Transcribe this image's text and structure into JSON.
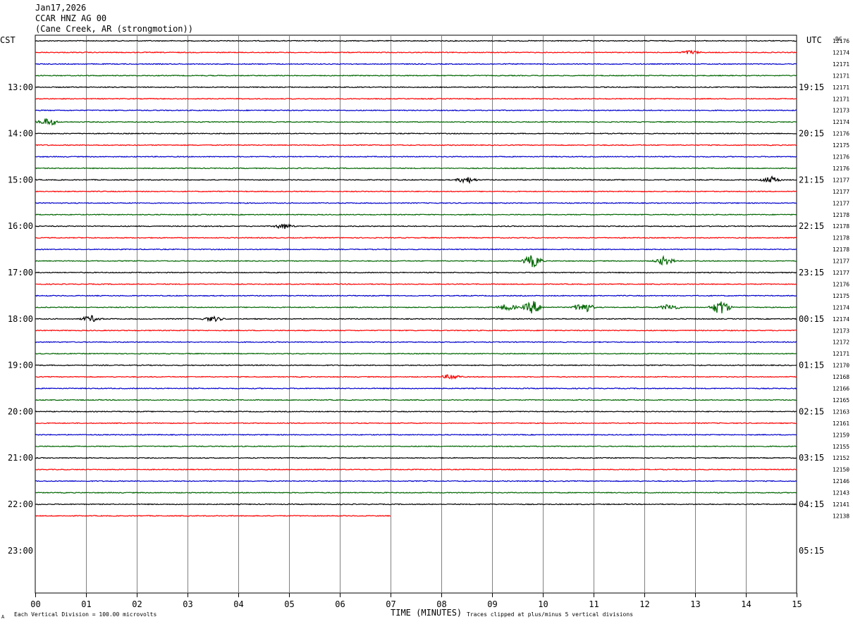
{
  "header": {
    "date": "Jan17,2026",
    "station": "CCAR HNZ AG 00",
    "location": "(Cane Creek, AR (strongmotion))"
  },
  "left_tz": "CST",
  "right_tz": "UTC",
  "dc_label": "DC",
  "footer": {
    "scale": "Each Vertical Division =  100.00 microvolts",
    "xlabel": "TIME (MINUTES)",
    "clip": "Traces clipped at plus/minus 5 vertical divisions",
    "corner_mark": "A"
  },
  "colors": {
    "trace_cycle": [
      "#000000",
      "#ff0000",
      "#0000cc",
      "#006600"
    ],
    "grid": "#808080"
  },
  "chart_data": {
    "type": "line",
    "title": "CCAR HNZ AG 00",
    "xlabel": "TIME (MINUTES)",
    "xlim": [
      0,
      15
    ],
    "x_ticks": [
      "00",
      "01",
      "02",
      "03",
      "04",
      "05",
      "06",
      "07",
      "08",
      "09",
      "10",
      "11",
      "12",
      "13",
      "14",
      "15"
    ],
    "left_hour_labels": [
      "13:00",
      "14:00",
      "15:00",
      "16:00",
      "17:00",
      "18:00",
      "19:00",
      "20:00",
      "21:00",
      "22:00",
      "23:00"
    ],
    "right_hour_labels": [
      "19:15",
      "20:15",
      "21:15",
      "22:15",
      "23:15",
      "00:15",
      "01:15",
      "02:15",
      "03:15",
      "04:15",
      "05:15"
    ],
    "traces_per_hour": 4,
    "dc_offsets": [
      "12176",
      "12174",
      "12171",
      "12171",
      "12171",
      "12171",
      "12173",
      "12174",
      "12176",
      "12175",
      "12176",
      "12176",
      "12177",
      "12177",
      "12177",
      "12178",
      "12178",
      "12178",
      "12178",
      "12177",
      "12177",
      "12176",
      "12175",
      "12174",
      "12174",
      "12173",
      "12172",
      "12171",
      "12170",
      "12168",
      "12166",
      "12165",
      "12163",
      "12161",
      "12159",
      "12155",
      "12152",
      "12150",
      "12146",
      "12143",
      "12141",
      "12138"
    ],
    "last_trace_end_minute": 7,
    "events": [
      {
        "trace": 7,
        "minute": 0.25,
        "amp": 0.6
      },
      {
        "trace": 16,
        "minute": 4.9,
        "amp": 0.4
      },
      {
        "trace": 12,
        "minute": 8.5,
        "amp": 0.5
      },
      {
        "trace": 12,
        "minute": 14.5,
        "amp": 0.5
      },
      {
        "trace": 19,
        "minute": 9.8,
        "amp": 1.0
      },
      {
        "trace": 19,
        "minute": 12.4,
        "amp": 0.7
      },
      {
        "trace": 23,
        "minute": 9.3,
        "amp": 0.5
      },
      {
        "trace": 23,
        "minute": 9.8,
        "amp": 1.0
      },
      {
        "trace": 23,
        "minute": 10.8,
        "amp": 0.9
      },
      {
        "trace": 23,
        "minute": 12.5,
        "amp": 0.5
      },
      {
        "trace": 23,
        "minute": 13.5,
        "amp": 1.2
      },
      {
        "trace": 24,
        "minute": 1.1,
        "amp": 0.5
      },
      {
        "trace": 24,
        "minute": 3.5,
        "amp": 0.4
      },
      {
        "trace": 29,
        "minute": 8.2,
        "amp": 0.4
      },
      {
        "trace": 1,
        "minute": 12.9,
        "amp": 0.3
      }
    ]
  }
}
